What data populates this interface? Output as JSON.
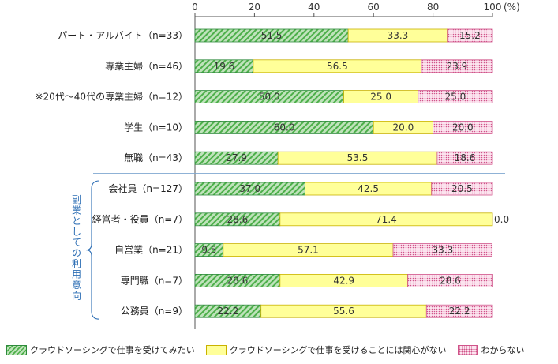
{
  "chart_data": {
    "type": "bar",
    "orientation": "horizontal-stacked-100",
    "x_ticks": [
      "0",
      "20",
      "40",
      "60",
      "80",
      "100"
    ],
    "x_unit": "(%)",
    "xlim": [
      0,
      100
    ],
    "grid": false,
    "categories": [
      "パート・アルバイト（n=33）",
      "専業主婦（n=46）",
      "※20代～40代の専業主婦（n=12）",
      "学生（n=10）",
      "無職（n=43）",
      "会社員（n=127）",
      "経営者・役員（n=7）",
      "自営業（n=21）",
      "専門職（n=7）",
      "公務員（n=9）"
    ],
    "group_label": "副業としての利用意向",
    "series": [
      {
        "name": "クラウドソーシングで仕事を受けてみたい",
        "values": [
          51.5,
          19.6,
          50.0,
          60.0,
          27.9,
          37.0,
          28.6,
          9.5,
          28.6,
          22.2
        ],
        "labels": [
          "51.5",
          "19.6",
          "50.0",
          "60.0",
          "27.9",
          "37.0",
          "28.6",
          "9.5",
          "28.6",
          "22.2"
        ]
      },
      {
        "name": "クラウドソーシングで仕事を受けることには関心がない",
        "values": [
          33.3,
          56.5,
          25.0,
          20.0,
          53.5,
          42.5,
          71.4,
          57.1,
          42.9,
          55.6
        ],
        "labels": [
          "33.3",
          "56.5",
          "25.0",
          "20.0",
          "53.5",
          "42.5",
          "71.4",
          "57.1",
          "42.9",
          "55.6"
        ]
      },
      {
        "name": "わからない",
        "values": [
          15.2,
          23.9,
          25.0,
          20.0,
          18.6,
          20.5,
          0.0,
          33.3,
          28.6,
          22.2
        ],
        "labels": [
          "15.2",
          "23.9",
          "25.0",
          "20.0",
          "18.6",
          "20.5",
          "0.0",
          "33.3",
          "28.6",
          "22.2"
        ]
      }
    ],
    "legend_position": "bottom"
  }
}
